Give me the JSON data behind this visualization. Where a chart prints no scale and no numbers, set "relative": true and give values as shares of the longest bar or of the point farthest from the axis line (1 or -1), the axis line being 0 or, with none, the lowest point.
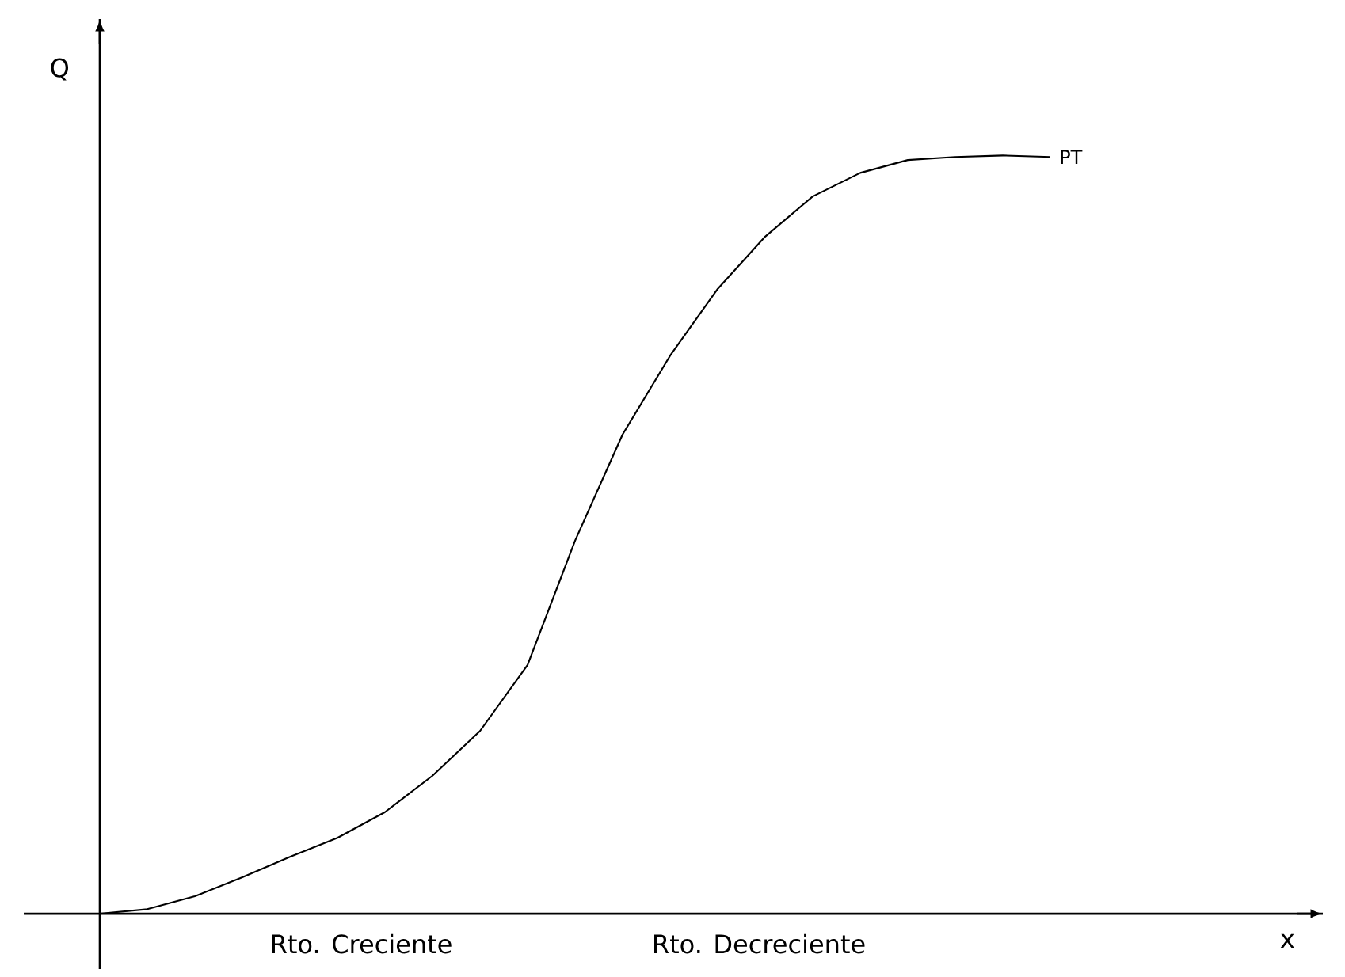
{
  "chart_data": {
    "type": "line",
    "relative": true,
    "ylabel": "Q",
    "categories": [
      null,
      null,
      null,
      null,
      null,
      null,
      null,
      null,
      null,
      null,
      null,
      null,
      null,
      null,
      null,
      null,
      null,
      null,
      null,
      null,
      null
    ],
    "series": [
      {
        "name": "PT",
        "color": "#000000",
        "values": [
          0,
          0.006,
          0.023,
          0.048,
          0.075,
          0.1,
          0.134,
          0.182,
          0.241,
          0.328,
          0.492,
          0.632,
          0.736,
          0.824,
          0.893,
          0.946,
          0.977,
          0.994,
          0.998,
          1,
          0.998
        ]
      }
    ],
    "annotations": [
      "Rto. Creciente",
      "Rto. Decreciente",
      "x"
    ],
    "marker": "none",
    "line_style": "solid",
    "legend": false
  }
}
